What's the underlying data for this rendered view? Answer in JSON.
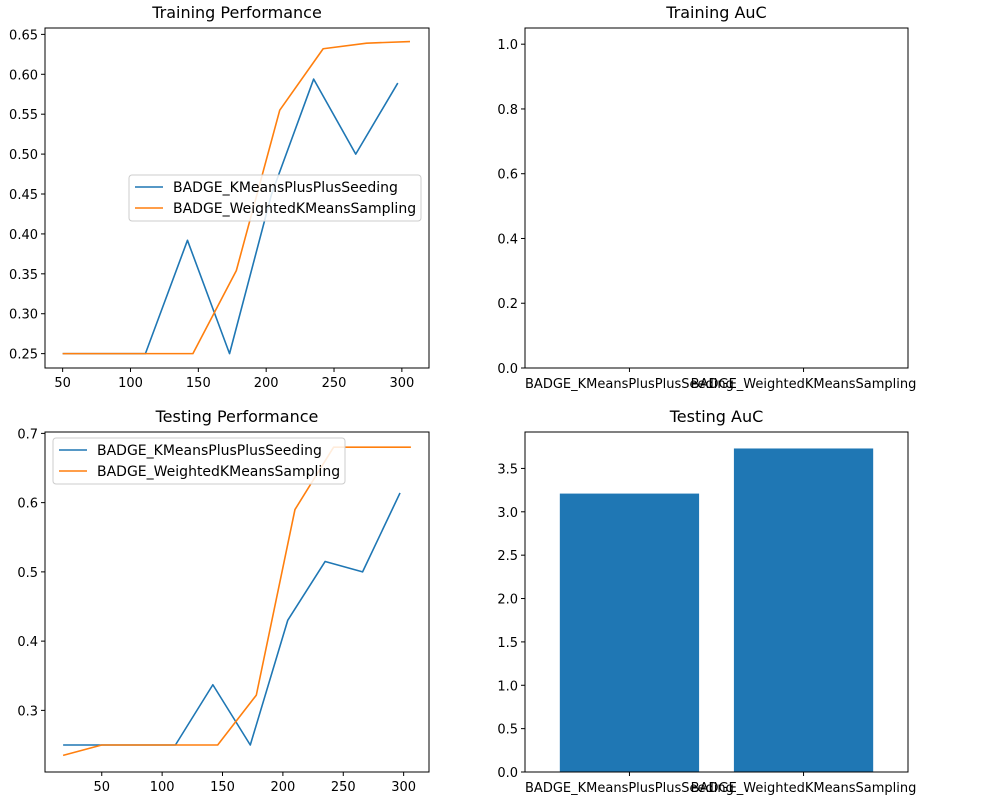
{
  "chart_data": [
    {
      "type": "line",
      "title": "Training Performance",
      "xlabel": "",
      "ylabel": "",
      "xlim": [
        37,
        320
      ],
      "ylim": [
        0.232,
        0.658
      ],
      "xticks": [
        50,
        100,
        150,
        200,
        250,
        300
      ],
      "yticks": [
        0.25,
        0.3,
        0.35,
        0.4,
        0.45,
        0.5,
        0.55,
        0.6,
        0.65
      ],
      "ytick_labels": [
        "0.25",
        "0.30",
        "0.35",
        "0.40",
        "0.45",
        "0.50",
        "0.55",
        "0.60",
        "0.65"
      ],
      "legend_position": "center-right",
      "series": [
        {
          "name": "BADGE_KMeansPlusPlusSeeding",
          "color": "#1f77b4",
          "x": [
            50,
            80,
            111,
            142,
            173,
            204,
            235,
            266,
            297
          ],
          "y": [
            0.25,
            0.25,
            0.25,
            0.392,
            0.25,
            0.45,
            0.594,
            0.5,
            0.589
          ]
        },
        {
          "name": "BADGE_WeightedKMeansSampling",
          "color": "#ff7f0e",
          "x": [
            50,
            82,
            114,
            146,
            178,
            210,
            242,
            274,
            306
          ],
          "y": [
            0.25,
            0.25,
            0.25,
            0.25,
            0.354,
            0.555,
            0.632,
            0.639,
            0.641
          ]
        }
      ]
    },
    {
      "type": "bar",
      "title": "Training AuC",
      "xlabel": "",
      "ylabel": "",
      "ylim": [
        0,
        1.05
      ],
      "yticks": [
        0.0,
        0.2,
        0.4,
        0.6,
        0.8,
        1.0
      ],
      "ytick_labels": [
        "0.0",
        "0.2",
        "0.4",
        "0.6",
        "0.8",
        "1.0"
      ],
      "categories": [
        "BADGE_KMeansPlusPlusSeeding",
        "BADGE_WeightedKMeansSampling"
      ],
      "values": [
        0,
        0
      ],
      "color": "#1f77b4"
    },
    {
      "type": "line",
      "title": "Testing Performance",
      "xlabel": "",
      "ylabel": "",
      "xlim": [
        3,
        321
      ],
      "ylim": [
        0.211,
        0.702
      ],
      "xticks": [
        50,
        100,
        150,
        200,
        250,
        300
      ],
      "yticks": [
        0.3,
        0.4,
        0.5,
        0.6,
        0.7
      ],
      "ytick_labels": [
        "0.3",
        "0.4",
        "0.5",
        "0.6",
        "0.7"
      ],
      "legend_position": "upper-left",
      "series": [
        {
          "name": "BADGE_KMeansPlusPlusSeeding",
          "color": "#1f77b4",
          "x": [
            18,
            50,
            80,
            111,
            142,
            173,
            204,
            235,
            266,
            297
          ],
          "y": [
            0.25,
            0.25,
            0.25,
            0.25,
            0.337,
            0.25,
            0.43,
            0.515,
            0.5,
            0.614
          ]
        },
        {
          "name": "BADGE_WeightedKMeansSampling",
          "color": "#ff7f0e",
          "x": [
            18,
            50,
            82,
            114,
            146,
            178,
            210,
            242,
            274,
            306
          ],
          "y": [
            0.235,
            0.25,
            0.25,
            0.25,
            0.25,
            0.322,
            0.59,
            0.68,
            0.68,
            0.68
          ]
        }
      ]
    },
    {
      "type": "bar",
      "title": "Testing AuC",
      "xlabel": "",
      "ylabel": "",
      "ylim": [
        0,
        3.92
      ],
      "yticks": [
        0.0,
        0.5,
        1.0,
        1.5,
        2.0,
        2.5,
        3.0,
        3.5
      ],
      "ytick_labels": [
        "0.0",
        "0.5",
        "1.0",
        "1.5",
        "2.0",
        "2.5",
        "3.0",
        "3.5"
      ],
      "categories": [
        "BADGE_KMeansPlusPlusSeeding",
        "BADGE_WeightedKMeansSampling"
      ],
      "values": [
        3.21,
        3.73
      ],
      "color": "#1f77b4"
    }
  ]
}
